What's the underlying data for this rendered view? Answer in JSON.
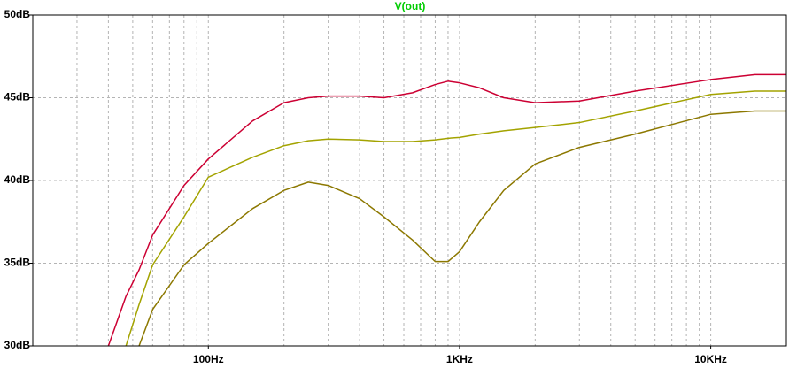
{
  "chart_data": {
    "type": "line",
    "title": "V(out)",
    "title_color": "#00cc00",
    "x": [
      40,
      47,
      53,
      60,
      80,
      100,
      150,
      200,
      250,
      300,
      400,
      500,
      650,
      800,
      900,
      1000,
      1200,
      1500,
      2000,
      3000,
      5000,
      10000,
      15000,
      20000
    ],
    "series": [
      {
        "color": "#cc0033",
        "values": [
          30,
          33.0,
          34.6,
          36.7,
          39.7,
          41.3,
          43.6,
          44.7,
          45.0,
          45.1,
          45.1,
          45.0,
          45.3,
          45.8,
          46.0,
          45.9,
          45.6,
          45.0,
          44.7,
          44.8,
          45.4,
          46.1,
          46.4,
          46.4
        ]
      },
      {
        "color": "#a3a300",
        "values": [
          null,
          30,
          32.5,
          34.9,
          37.8,
          40.2,
          41.4,
          42.1,
          42.4,
          42.5,
          42.45,
          42.35,
          42.35,
          42.45,
          42.55,
          42.6,
          42.8,
          43.0,
          43.2,
          43.5,
          44.2,
          45.2,
          45.4,
          45.4
        ]
      },
      {
        "color": "#8c7800",
        "values": [
          null,
          null,
          30,
          32.2,
          34.9,
          36.2,
          38.3,
          39.4,
          39.9,
          39.7,
          38.9,
          37.8,
          36.4,
          35.1,
          35.1,
          35.7,
          37.5,
          39.4,
          41.0,
          42.0,
          42.8,
          44.0,
          44.2,
          44.2
        ]
      }
    ],
    "xlog": true,
    "xlim": [
      20,
      20000
    ],
    "ylim": [
      30,
      50
    ],
    "xticks": [
      {
        "value": 100,
        "label": "100Hz"
      },
      {
        "value": 1000,
        "label": "1KHz"
      },
      {
        "value": 10000,
        "label": "10KHz"
      }
    ],
    "x_minor_ticks": [
      30,
      40,
      50,
      60,
      70,
      80,
      90,
      200,
      300,
      400,
      500,
      600,
      700,
      800,
      900,
      2000,
      3000,
      4000,
      5000,
      6000,
      7000,
      8000,
      9000
    ],
    "yticks": [
      {
        "value": 30,
        "label": "30dB"
      },
      {
        "value": 35,
        "label": "35dB"
      },
      {
        "value": 40,
        "label": "40dB"
      },
      {
        "value": 45,
        "label": "45dB"
      },
      {
        "value": 50,
        "label": "50dB"
      }
    ],
    "grid": true
  }
}
